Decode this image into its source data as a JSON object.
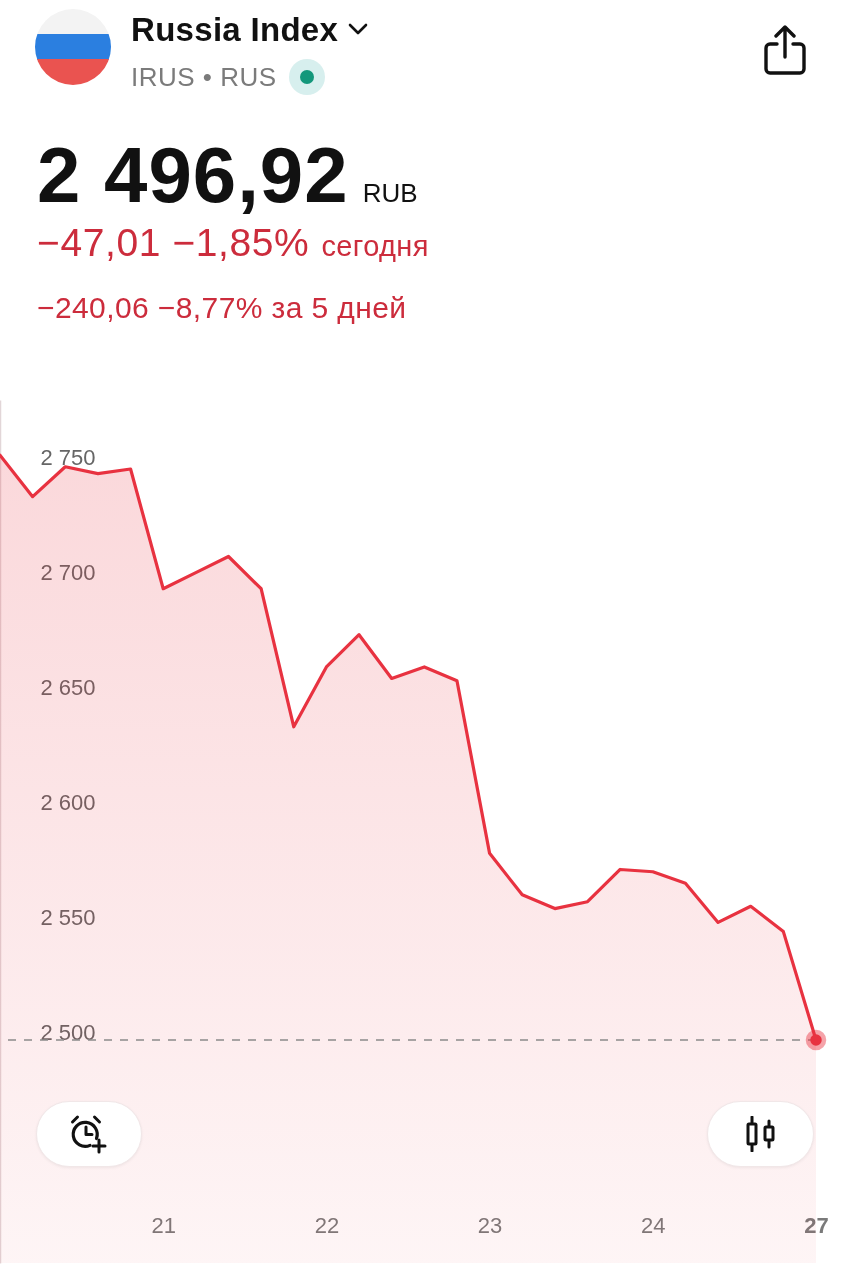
{
  "chart_data": {
    "type": "area",
    "title": "Russia Index",
    "subtitle": "IRUS • RUS",
    "annotations": [
      "2 496,92",
      "RUB",
      "−47,01 −1,85%",
      "сегодня",
      "−240,06 −8,77% за 5 дней"
    ],
    "categories": [
      null,
      null,
      null,
      null,
      null,
      "21",
      null,
      null,
      null,
      null,
      "22",
      null,
      null,
      null,
      null,
      "23",
      null,
      null,
      null,
      null,
      "24",
      null,
      null,
      null,
      null,
      "27"
    ],
    "series": [
      {
        "color": "#e83240",
        "values": [
          2751,
          2733,
          2746,
          2743,
          2745,
          2693,
          2700,
          2707,
          2693,
          2633,
          2659,
          2673,
          2654,
          2659,
          2653,
          2578,
          2560,
          2554,
          2557,
          2571,
          2570,
          2565,
          2548,
          2555,
          2544,
          2496.92
        ]
      },
      {
        "type": "scatter",
        "color": "#e83240",
        "values": [
          null,
          null,
          null,
          null,
          null,
          null,
          null,
          null,
          null,
          null,
          null,
          null,
          null,
          null,
          null,
          null,
          null,
          null,
          null,
          null,
          null,
          null,
          null,
          null,
          null,
          2496.92
        ]
      }
    ],
    "ylim": [
      2400,
      2775
    ],
    "yticks": [
      {
        "value": 2500,
        "label": "2 500"
      },
      {
        "value": 2550,
        "label": "2 550"
      },
      {
        "value": 2600,
        "label": "2 600"
      },
      {
        "value": 2650,
        "label": "2 650"
      },
      {
        "value": 2700,
        "label": "2 700"
      },
      {
        "value": 2750,
        "label": "2 750"
      }
    ],
    "ref_lines": [
      {
        "axis": "y",
        "value": 2496.92,
        "color": "#8a8a8a",
        "line_style": "dashed"
      }
    ]
  }
}
